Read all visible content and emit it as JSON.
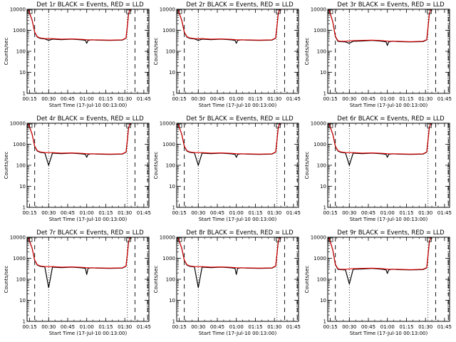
{
  "colors": {
    "events": "#000000",
    "lld": "#e00000",
    "background": "#ffffff"
  },
  "axes": {
    "xlabel": "Start Time (17-Jul-10 00:13:00)",
    "ylabel": "Counts/sec",
    "x_tick_labels": [
      "00:15",
      "00:30",
      "00:45",
      "01:00",
      "01:15",
      "01:30",
      "01:45"
    ],
    "y_tick_labels": [
      "1",
      "10",
      "100",
      "1000",
      "10000"
    ]
  },
  "chart_data": [
    {
      "type": "line",
      "title": "Det 1r BLACK = Events, RED = LLD",
      "xlabel": "Start Time (17-Jul-10 00:13:00)",
      "ylabel": "Counts/sec",
      "y_scale": "log",
      "xlim_minutes": [
        0,
        96
      ],
      "ylim": [
        1,
        10000
      ],
      "dashed_lines_minutes": [
        6,
        85,
        95
      ],
      "dotted_lines_minutes": [
        17,
        79
      ],
      "series": [
        {
          "name": "Events",
          "color": "#000000",
          "x_minutes": [
            1,
            4,
            6,
            8,
            10,
            14,
            17,
            20,
            27,
            35,
            43,
            46,
            47,
            48,
            51,
            55,
            65,
            75,
            78,
            79,
            80,
            81,
            82
          ],
          "values": [
            9500,
            3000,
            800,
            480,
            420,
            390,
            330,
            380,
            360,
            380,
            350,
            330,
            240,
            330,
            350,
            340,
            330,
            340,
            420,
            1500,
            6000,
            9000,
            9500
          ]
        },
        {
          "name": "LLD",
          "color": "#e00000",
          "x_minutes": [
            1,
            4,
            6,
            8,
            10,
            14,
            20,
            27,
            35,
            43,
            48,
            55,
            65,
            75,
            78,
            79,
            80,
            81,
            82
          ],
          "values": [
            9500,
            3000,
            820,
            500,
            440,
            400,
            400,
            380,
            390,
            370,
            350,
            350,
            340,
            350,
            430,
            1600,
            6200,
            9200,
            9600
          ]
        }
      ]
    },
    {
      "type": "line",
      "title": "Det 2r BLACK = Events, RED = LLD",
      "xlabel": "Start Time (17-Jul-10 00:13:00)",
      "ylabel": "Counts/sec",
      "y_scale": "log",
      "xlim_minutes": [
        0,
        96
      ],
      "ylim": [
        1,
        10000
      ],
      "dashed_lines_minutes": [
        6,
        85,
        95
      ],
      "dotted_lines_minutes": [
        17,
        79
      ],
      "series": [
        {
          "name": "Events",
          "color": "#000000",
          "x_minutes": [
            1,
            4,
            6,
            8,
            10,
            14,
            17,
            20,
            27,
            35,
            43,
            46,
            47,
            48,
            51,
            55,
            65,
            75,
            78,
            79,
            80,
            81,
            82
          ],
          "values": [
            9500,
            3000,
            800,
            480,
            420,
            390,
            330,
            380,
            360,
            380,
            350,
            330,
            240,
            330,
            350,
            340,
            330,
            340,
            420,
            1500,
            6000,
            9000,
            9500
          ]
        },
        {
          "name": "LLD",
          "color": "#e00000",
          "x_minutes": [
            1,
            4,
            6,
            8,
            10,
            14,
            20,
            27,
            35,
            43,
            48,
            55,
            65,
            75,
            78,
            79,
            80,
            81,
            82
          ],
          "values": [
            9500,
            3000,
            820,
            500,
            440,
            400,
            400,
            380,
            390,
            370,
            350,
            350,
            340,
            350,
            430,
            1600,
            6200,
            9200,
            9600
          ]
        }
      ]
    },
    {
      "type": "line",
      "title": "Det 3r BLACK = Events, RED = LLD",
      "xlabel": "Start Time (17-Jul-10 00:13:00)",
      "ylabel": "Counts/sec",
      "y_scale": "log",
      "xlim_minutes": [
        0,
        96
      ],
      "ylim": [
        1,
        10000
      ],
      "dashed_lines_minutes": [
        6,
        85,
        95
      ],
      "dotted_lines_minutes": [
        17,
        79
      ],
      "series": [
        {
          "name": "Events",
          "color": "#000000",
          "x_minutes": [
            1,
            4,
            6,
            8,
            10,
            14,
            17,
            20,
            27,
            35,
            43,
            46,
            47,
            48,
            51,
            55,
            65,
            75,
            78,
            79,
            80,
            81,
            82
          ],
          "values": [
            9500,
            2500,
            500,
            300,
            290,
            280,
            240,
            300,
            310,
            330,
            300,
            280,
            190,
            280,
            300,
            290,
            280,
            290,
            350,
            1300,
            5500,
            9000,
            9500
          ]
        },
        {
          "name": "LLD",
          "color": "#e00000",
          "x_minutes": [
            1,
            4,
            6,
            8,
            10,
            14,
            20,
            27,
            35,
            43,
            48,
            55,
            65,
            75,
            78,
            79,
            80,
            81,
            82
          ],
          "values": [
            9500,
            2500,
            520,
            320,
            300,
            300,
            320,
            330,
            340,
            320,
            300,
            300,
            290,
            300,
            360,
            1400,
            5800,
            9200,
            9600
          ]
        }
      ]
    },
    {
      "type": "line",
      "title": "Det 4r BLACK = Events, RED = LLD",
      "xlabel": "Start Time (17-Jul-10 00:13:00)",
      "ylabel": "Counts/sec",
      "y_scale": "log",
      "xlim_minutes": [
        0,
        96
      ],
      "ylim": [
        1,
        10000
      ],
      "dashed_lines_minutes": [
        6,
        85,
        95
      ],
      "dotted_lines_minutes": [
        17,
        79
      ],
      "series": [
        {
          "name": "Events",
          "color": "#000000",
          "x_minutes": [
            1,
            4,
            6,
            8,
            10,
            14,
            17,
            20,
            27,
            35,
            43,
            46,
            47,
            48,
            51,
            55,
            65,
            75,
            78,
            79,
            80,
            81,
            82
          ],
          "values": [
            9500,
            3000,
            800,
            480,
            420,
            390,
            100,
            380,
            360,
            380,
            350,
            330,
            240,
            330,
            350,
            340,
            330,
            340,
            420,
            1500,
            6000,
            9000,
            9500
          ]
        },
        {
          "name": "LLD",
          "color": "#e00000",
          "x_minutes": [
            1,
            4,
            6,
            8,
            10,
            14,
            20,
            27,
            35,
            43,
            48,
            55,
            65,
            75,
            78,
            79,
            80,
            81,
            82
          ],
          "values": [
            9500,
            3000,
            820,
            500,
            440,
            400,
            400,
            380,
            390,
            370,
            350,
            350,
            340,
            350,
            430,
            1600,
            6200,
            9200,
            9600
          ]
        }
      ]
    },
    {
      "type": "line",
      "title": "Det 5r BLACK = Events, RED = LLD",
      "xlabel": "Start Time (17-Jul-10 00:13:00)",
      "ylabel": "Counts/sec",
      "y_scale": "log",
      "xlim_minutes": [
        0,
        96
      ],
      "ylim": [
        1,
        10000
      ],
      "dashed_lines_minutes": [
        6,
        85,
        95
      ],
      "dotted_lines_minutes": [
        17,
        79
      ],
      "series": [
        {
          "name": "Events",
          "color": "#000000",
          "x_minutes": [
            1,
            4,
            6,
            8,
            10,
            14,
            17,
            20,
            27,
            35,
            43,
            46,
            47,
            48,
            51,
            55,
            65,
            75,
            78,
            79,
            80,
            81,
            82
          ],
          "values": [
            9500,
            3000,
            800,
            480,
            420,
            390,
            100,
            380,
            360,
            380,
            350,
            330,
            240,
            330,
            350,
            340,
            330,
            340,
            420,
            1500,
            6000,
            9000,
            9500
          ]
        },
        {
          "name": "LLD",
          "color": "#e00000",
          "x_minutes": [
            1,
            4,
            6,
            8,
            10,
            14,
            20,
            27,
            35,
            43,
            48,
            55,
            65,
            75,
            78,
            79,
            80,
            81,
            82
          ],
          "values": [
            9500,
            3000,
            820,
            500,
            440,
            400,
            400,
            380,
            390,
            370,
            350,
            350,
            340,
            350,
            430,
            1600,
            6200,
            9200,
            9600
          ]
        }
      ]
    },
    {
      "type": "line",
      "title": "Det 6r BLACK = Events, RED = LLD",
      "xlabel": "Start Time (17-Jul-10 00:13:00)",
      "ylabel": "Counts/sec",
      "y_scale": "log",
      "xlim_minutes": [
        0,
        96
      ],
      "ylim": [
        1,
        10000
      ],
      "dashed_lines_minutes": [
        6,
        85,
        95
      ],
      "dotted_lines_minutes": [
        17,
        79
      ],
      "series": [
        {
          "name": "Events",
          "color": "#000000",
          "x_minutes": [
            1,
            4,
            6,
            8,
            10,
            14,
            17,
            20,
            27,
            35,
            43,
            46,
            47,
            48,
            51,
            55,
            65,
            75,
            78,
            79,
            80,
            81,
            82
          ],
          "values": [
            9500,
            3000,
            800,
            480,
            420,
            390,
            100,
            380,
            360,
            380,
            350,
            330,
            240,
            330,
            350,
            340,
            330,
            340,
            420,
            1500,
            6000,
            9000,
            9500
          ]
        },
        {
          "name": "LLD",
          "color": "#e00000",
          "x_minutes": [
            1,
            4,
            6,
            8,
            10,
            14,
            20,
            27,
            35,
            43,
            48,
            55,
            65,
            75,
            78,
            79,
            80,
            81,
            82
          ],
          "values": [
            9500,
            3000,
            820,
            500,
            440,
            400,
            400,
            380,
            390,
            370,
            350,
            350,
            340,
            350,
            430,
            1600,
            6200,
            9200,
            9600
          ]
        }
      ]
    },
    {
      "type": "line",
      "title": "Det 7r BLACK = Events, RED = LLD",
      "xlabel": "Start Time (17-Jul-10 00:13:00)",
      "ylabel": "Counts/sec",
      "y_scale": "log",
      "xlim_minutes": [
        0,
        96
      ],
      "ylim": [
        1,
        10000
      ],
      "dashed_lines_minutes": [
        6,
        85,
        95
      ],
      "dotted_lines_minutes": [
        17,
        79
      ],
      "series": [
        {
          "name": "Events",
          "color": "#000000",
          "x_minutes": [
            1,
            4,
            6,
            8,
            10,
            14,
            17,
            20,
            27,
            35,
            43,
            46,
            47,
            48,
            51,
            55,
            65,
            75,
            78,
            79,
            80,
            81,
            82
          ],
          "values": [
            9500,
            3000,
            800,
            480,
            420,
            390,
            40,
            380,
            360,
            380,
            350,
            330,
            170,
            330,
            350,
            340,
            330,
            340,
            420,
            1500,
            6000,
            9000,
            9500
          ]
        },
        {
          "name": "LLD",
          "color": "#e00000",
          "x_minutes": [
            1,
            4,
            6,
            8,
            10,
            14,
            20,
            27,
            35,
            43,
            48,
            55,
            65,
            75,
            78,
            79,
            80,
            81,
            82
          ],
          "values": [
            9500,
            3000,
            820,
            500,
            440,
            400,
            400,
            380,
            390,
            370,
            350,
            350,
            340,
            350,
            430,
            1600,
            6200,
            9200,
            9600
          ]
        }
      ]
    },
    {
      "type": "line",
      "title": "Det 8r BLACK = Events, RED = LLD",
      "xlabel": "Start Time (17-Jul-10 00:13:00)",
      "ylabel": "Counts/sec",
      "y_scale": "log",
      "xlim_minutes": [
        0,
        96
      ],
      "ylim": [
        1,
        10000
      ],
      "dashed_lines_minutes": [
        6,
        85,
        95
      ],
      "dotted_lines_minutes": [
        17,
        79
      ],
      "series": [
        {
          "name": "Events",
          "color": "#000000",
          "x_minutes": [
            1,
            4,
            6,
            8,
            10,
            14,
            17,
            20,
            27,
            35,
            43,
            46,
            47,
            48,
            51,
            55,
            65,
            75,
            78,
            79,
            80,
            81,
            82
          ],
          "values": [
            9500,
            3000,
            800,
            480,
            420,
            390,
            40,
            380,
            360,
            380,
            350,
            330,
            170,
            330,
            350,
            340,
            330,
            340,
            420,
            1500,
            6000,
            9000,
            9500
          ]
        },
        {
          "name": "LLD",
          "color": "#e00000",
          "x_minutes": [
            1,
            4,
            6,
            8,
            10,
            14,
            20,
            27,
            35,
            43,
            48,
            55,
            65,
            75,
            78,
            79,
            80,
            81,
            82
          ],
          "values": [
            9500,
            3000,
            820,
            500,
            440,
            400,
            400,
            380,
            390,
            370,
            350,
            350,
            340,
            350,
            430,
            1600,
            6200,
            9200,
            9600
          ]
        }
      ]
    },
    {
      "type": "line",
      "title": "Det 9r BLACK = Events, RED = LLD",
      "xlabel": "Start Time (17-Jul-10 00:13:00)",
      "ylabel": "Counts/sec",
      "y_scale": "log",
      "xlim_minutes": [
        0,
        96
      ],
      "ylim": [
        1,
        10000
      ],
      "dashed_lines_minutes": [
        6,
        85,
        95
      ],
      "dotted_lines_minutes": [
        17,
        79
      ],
      "series": [
        {
          "name": "Events",
          "color": "#000000",
          "x_minutes": [
            1,
            4,
            6,
            8,
            10,
            14,
            17,
            20,
            27,
            35,
            43,
            46,
            47,
            48,
            51,
            55,
            65,
            75,
            78,
            79,
            80,
            81,
            82
          ],
          "values": [
            9500,
            2500,
            500,
            300,
            290,
            280,
            60,
            300,
            310,
            330,
            300,
            280,
            190,
            280,
            300,
            290,
            280,
            290,
            350,
            1300,
            5500,
            9000,
            9500
          ]
        },
        {
          "name": "LLD",
          "color": "#e00000",
          "x_minutes": [
            1,
            4,
            6,
            8,
            10,
            14,
            20,
            27,
            35,
            43,
            48,
            55,
            65,
            75,
            78,
            79,
            80,
            81,
            82
          ],
          "values": [
            9500,
            2500,
            520,
            320,
            300,
            300,
            320,
            330,
            340,
            320,
            300,
            300,
            290,
            300,
            360,
            1400,
            5800,
            9200,
            9600
          ]
        }
      ]
    }
  ]
}
